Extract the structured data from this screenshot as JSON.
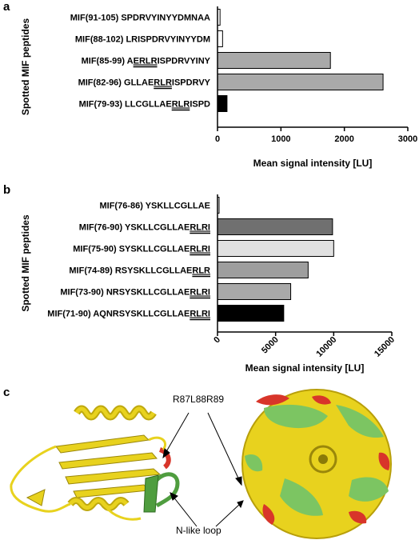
{
  "panels": {
    "a": {
      "label": "a",
      "ylabel": "Spotted MIF peptides",
      "xlabel": "Mean signal intensity [LU]",
      "xlim": [
        0,
        3000
      ],
      "ticks": [
        0,
        1000,
        2000,
        3000
      ],
      "tick_labels": [
        "0",
        "1000",
        "2000",
        "3000"
      ],
      "tick_rotation": 0,
      "rows": [
        {
          "pre": "MIF(91-105) SPDRVYINYYDMNAA",
          "ul": "",
          "post": "",
          "value": 40,
          "color": "#ffffff"
        },
        {
          "pre": "MIF(88-102) LRISPDRVYINYYDM",
          "ul": "",
          "post": "",
          "value": 80,
          "color": "#ffffff"
        },
        {
          "pre": "MIF(85-99) A",
          "ul": "ERLR",
          "post": "ISPDRVYINY",
          "value": 1780,
          "color": "#a9a9a9"
        },
        {
          "pre": "MIF(82-96) GLLAE",
          "ul": "RLR",
          "post": "ISPDRVY",
          "value": 2610,
          "color": "#a9a9a9"
        },
        {
          "pre": "MIF(79-93) LLCGLLAE",
          "ul": "RLR",
          "post": "ISPD",
          "value": 150,
          "color": "#000000"
        }
      ]
    },
    "b": {
      "label": "b",
      "ylabel": "Spotted MIF peptides",
      "xlabel": "Mean signal intensity [LU]",
      "xlim": [
        0,
        15000
      ],
      "ticks": [
        0,
        5000,
        10000,
        15000
      ],
      "tick_labels": [
        "0",
        "5000",
        "10000",
        "15000"
      ],
      "tick_rotation": -45,
      "rows": [
        {
          "pre": "MIF(76-86) YSKLLCGLLAE",
          "ul": "",
          "post": "",
          "value": 100,
          "color": "#ffffff"
        },
        {
          "pre": "MIF(76-90) YSKLLCGLLAE",
          "ul": "RLRI",
          "post": "",
          "value": 9900,
          "color": "#707070"
        },
        {
          "pre": "MIF(75-90) SYSKLLCGLLAE",
          "ul": "RLRI",
          "post": "",
          "value": 10000,
          "color": "#e0e0e0"
        },
        {
          "pre": "MIF(74-89) RSYSKLLCGLLAE",
          "ul": "RLR",
          "post": "",
          "value": 7800,
          "color": "#9e9e9e"
        },
        {
          "pre": "MIF(73-90) NRSYSKLLCGLLAE",
          "ul": "RLRI",
          "post": "",
          "value": 6300,
          "color": "#a9a9a9"
        },
        {
          "pre": "MIF(71-90) AQNRSYSKLLCGLLAE",
          "ul": "RLRI",
          "post": "",
          "value": 5700,
          "color": "#000000"
        }
      ]
    },
    "c": {
      "label": "c",
      "annotation_top": "R87L88R89",
      "annotation_bottom": "N-like loop",
      "colors": {
        "yellow": "#e8d21e",
        "red": "#d8352a",
        "green": "#4f9d3f",
        "surface_green": "#7cc562"
      }
    }
  }
}
